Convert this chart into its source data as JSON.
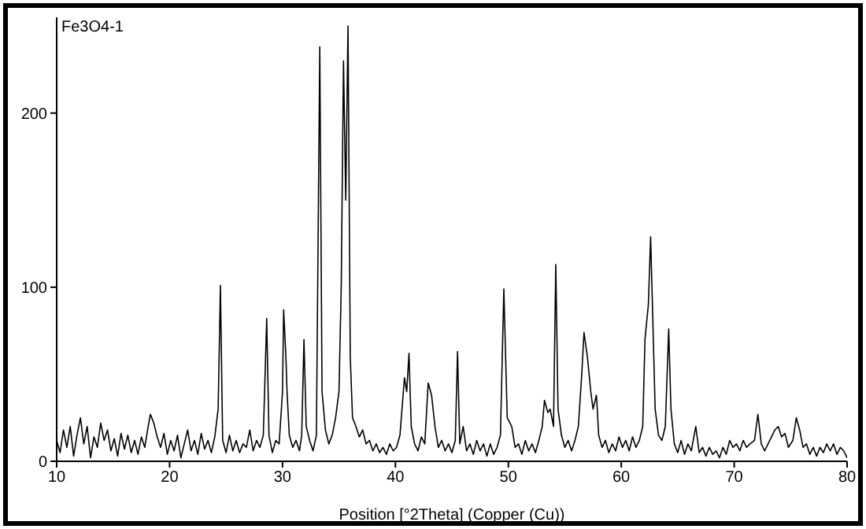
{
  "chart_data": {
    "type": "line",
    "title": "Fe3O4-1",
    "xlabel": "Position [°2Theta] (Copper (Cu))",
    "xlim": [
      10,
      80
    ],
    "xticks": [
      10,
      20,
      30,
      40,
      50,
      60,
      70,
      80
    ],
    "ylim": [
      0,
      255
    ],
    "yticks": [
      0,
      100,
      200
    ],
    "grid": false,
    "legend": false,
    "marker": "none",
    "line_style": "solid",
    "x": [
      10,
      10.3,
      10.6,
      10.9,
      11.2,
      11.5,
      11.8,
      12.1,
      12.4,
      12.7,
      13.0,
      13.3,
      13.6,
      13.9,
      14.2,
      14.5,
      14.8,
      15.1,
      15.4,
      15.7,
      16.0,
      16.3,
      16.6,
      16.9,
      17.2,
      17.5,
      17.8,
      18.1,
      18.3,
      18.6,
      18.9,
      19.2,
      19.5,
      19.8,
      20.1,
      20.4,
      20.7,
      21.0,
      21.3,
      21.6,
      21.9,
      22.2,
      22.5,
      22.8,
      23.1,
      23.4,
      23.7,
      24.0,
      24.3,
      24.5,
      24.7,
      25.0,
      25.3,
      25.6,
      25.9,
      26.2,
      26.5,
      26.8,
      27.1,
      27.4,
      27.7,
      28.0,
      28.3,
      28.6,
      28.8,
      29.1,
      29.4,
      29.7,
      30.0,
      30.1,
      30.3,
      30.4,
      30.6,
      30.9,
      31.2,
      31.5,
      31.7,
      31.9,
      32.1,
      32.4,
      32.7,
      33.0,
      33.3,
      33.5,
      33.8,
      34.1,
      34.4,
      34.7,
      35.0,
      35.2,
      35.4,
      35.6,
      35.8,
      36.0,
      36.2,
      36.5,
      36.8,
      37.1,
      37.4,
      37.7,
      38.0,
      38.3,
      38.6,
      38.9,
      39.2,
      39.5,
      39.8,
      40.1,
      40.4,
      40.8,
      41.0,
      41.2,
      41.4,
      41.7,
      42.0,
      42.3,
      42.6,
      42.9,
      43.2,
      43.5,
      43.8,
      44.1,
      44.4,
      44.7,
      45.0,
      45.3,
      45.5,
      45.7,
      46.0,
      46.3,
      46.6,
      46.9,
      47.2,
      47.5,
      47.8,
      48.1,
      48.4,
      48.7,
      49.0,
      49.3,
      49.6,
      49.9,
      50.3,
      50.6,
      50.9,
      51.2,
      51.5,
      51.8,
      52.1,
      52.4,
      52.7,
      53.0,
      53.2,
      53.5,
      53.7,
      54.0,
      54.2,
      54.4,
      54.7,
      55.0,
      55.3,
      55.6,
      55.9,
      56.2,
      56.5,
      56.7,
      57.0,
      57.3,
      57.5,
      57.8,
      58.0,
      58.3,
      58.6,
      58.9,
      59.2,
      59.5,
      59.8,
      60.1,
      60.4,
      60.7,
      61.0,
      61.3,
      61.6,
      61.9,
      62.1,
      62.4,
      62.6,
      62.8,
      63.0,
      63.3,
      63.6,
      63.9,
      64.2,
      64.4,
      64.7,
      65.0,
      65.3,
      65.6,
      65.9,
      66.2,
      66.6,
      66.9,
      67.2,
      67.5,
      67.8,
      68.1,
      68.4,
      68.7,
      69.0,
      69.3,
      69.6,
      69.9,
      70.2,
      70.5,
      70.8,
      71.1,
      71.4,
      71.8,
      72.1,
      72.4,
      72.7,
      73.0,
      73.3,
      73.6,
      73.9,
      74.2,
      74.5,
      74.8,
      75.2,
      75.5,
      75.8,
      76.1,
      76.4,
      76.7,
      77.0,
      77.3,
      77.6,
      77.9,
      78.2,
      78.5,
      78.8,
      79.1,
      79.4,
      79.7,
      80.0
    ],
    "series": [
      {
        "color": "#000000",
        "values": [
          12,
          5,
          18,
          8,
          20,
          3,
          15,
          25,
          10,
          20,
          2,
          14,
          8,
          22,
          12,
          18,
          6,
          13,
          3,
          16,
          7,
          15,
          5,
          12,
          4,
          14,
          8,
          20,
          27,
          22,
          14,
          8,
          16,
          4,
          12,
          6,
          15,
          2,
          10,
          18,
          6,
          12,
          4,
          16,
          7,
          12,
          5,
          14,
          30,
          101,
          12,
          5,
          15,
          6,
          12,
          5,
          10,
          8,
          18,
          6,
          12,
          8,
          15,
          82,
          15,
          5,
          12,
          10,
          40,
          87,
          60,
          40,
          15,
          8,
          12,
          6,
          15,
          70,
          20,
          12,
          6,
          15,
          238,
          40,
          18,
          10,
          15,
          25,
          40,
          100,
          230,
          150,
          250,
          60,
          25,
          20,
          14,
          18,
          10,
          12,
          6,
          10,
          5,
          8,
          4,
          10,
          6,
          8,
          15,
          48,
          40,
          62,
          20,
          10,
          6,
          14,
          10,
          45,
          38,
          20,
          8,
          12,
          6,
          10,
          5,
          12,
          63,
          10,
          20,
          6,
          10,
          4,
          12,
          6,
          10,
          3,
          10,
          4,
          8,
          15,
          99,
          25,
          20,
          8,
          10,
          4,
          12,
          6,
          10,
          5,
          12,
          20,
          35,
          28,
          30,
          20,
          113,
          30,
          15,
          8,
          12,
          6,
          12,
          20,
          50,
          74,
          60,
          40,
          30,
          38,
          15,
          8,
          12,
          5,
          10,
          6,
          14,
          8,
          12,
          6,
          14,
          8,
          12,
          20,
          70,
          90,
          129,
          80,
          30,
          15,
          12,
          20,
          76,
          30,
          10,
          5,
          12,
          4,
          10,
          6,
          20,
          5,
          8,
          3,
          8,
          4,
          6,
          2,
          8,
          4,
          12,
          8,
          10,
          6,
          12,
          8,
          10,
          12,
          27,
          10,
          6,
          10,
          14,
          18,
          20,
          14,
          16,
          8,
          12,
          25,
          18,
          8,
          10,
          4,
          8,
          3,
          8,
          5,
          10,
          6,
          10,
          4,
          8,
          6,
          2
        ]
      }
    ]
  }
}
